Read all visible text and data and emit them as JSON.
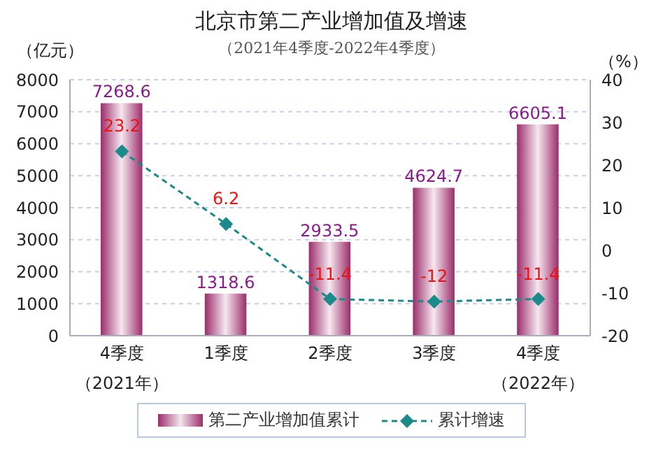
{
  "chart_data": {
    "type": "bar",
    "title": "北京市第二产业增加值及增速",
    "subtitle": "（2021年4季度-2022年4季度）",
    "ylabel": "（亿元）",
    "y2label": "（%）",
    "categories": [
      "4季度",
      "1季度",
      "2季度",
      "3季度",
      "4季度"
    ],
    "annotations": [
      "（2021年）",
      "（2022年）"
    ],
    "series": [
      {
        "name": "第二产业增加值累计",
        "color": "#9b2d6b",
        "values": [
          7268.6,
          1318.6,
          2933.5,
          4624.7,
          6605.1
        ]
      },
      {
        "name": "累计增速",
        "type": "line",
        "axis": "y2",
        "color": "#1a8a8a",
        "values": [
          23.2,
          6.2,
          -11.4,
          -12,
          -11.4
        ],
        "marker": "diamond",
        "line_style": "dashed"
      }
    ],
    "ylim": [
      0,
      8000
    ],
    "yticks": [
      0,
      1000,
      2000,
      3000,
      4000,
      5000,
      6000,
      7000,
      8000
    ],
    "y2lim": [
      -20,
      40
    ],
    "y2ticks": [
      -20,
      -10,
      0,
      10,
      20,
      30,
      40
    ],
    "grid": "y",
    "legend": "bottom",
    "data_labels": true
  }
}
